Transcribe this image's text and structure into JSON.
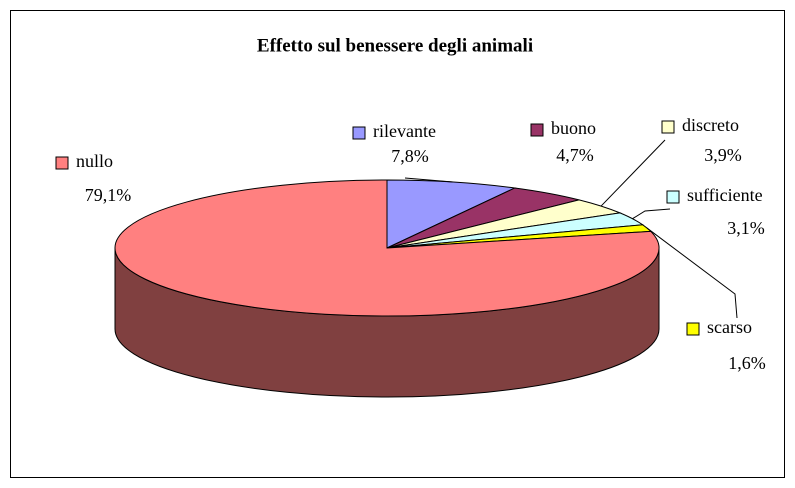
{
  "chart_data": {
    "type": "pie",
    "title": "Effetto sul benessere degli animali",
    "categories": [
      "rilevante",
      "buono",
      "discreto",
      "sufficiente",
      "scarso",
      "nullo"
    ],
    "values": [
      7.8,
      4.7,
      3.9,
      3.1,
      1.6,
      79.1
    ],
    "value_labels": [
      "7,8%",
      "4,7%",
      "3,9%",
      "3,1%",
      "1,6%",
      "79,1%"
    ],
    "colors": [
      "#9999ff",
      "#993366",
      "#ffffcc",
      "#ccffff",
      "#ffff00",
      "#ff8080"
    ]
  }
}
